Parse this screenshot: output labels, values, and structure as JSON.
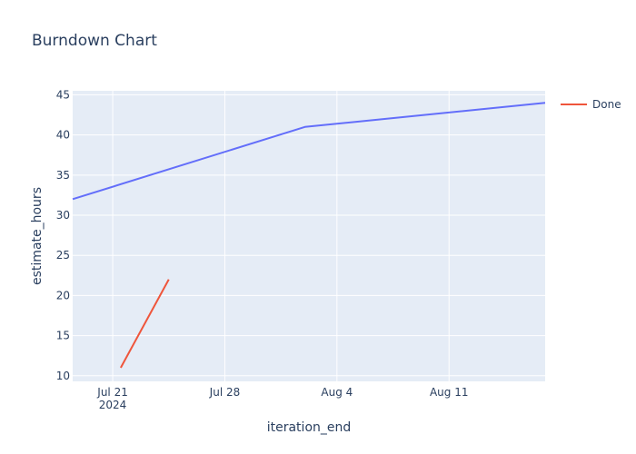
{
  "chart_data": {
    "type": "line",
    "title": "Burndown Chart",
    "xlabel": "iteration_end",
    "ylabel": "estimate_hours",
    "x_axis_type": "date",
    "xlim": [
      "2024-07-18T12:00:00",
      "2024-08-17"
    ],
    "ylim": [
      9.3,
      45.5
    ],
    "grid": true,
    "legend": {
      "placement": "top-right"
    },
    "x_ticks": [
      {
        "value": "2024-07-21",
        "label": "Jul 21",
        "sublabel": "2024"
      },
      {
        "value": "2024-07-28",
        "label": "Jul 28"
      },
      {
        "value": "2024-08-04",
        "label": "Aug 4"
      },
      {
        "value": "2024-08-11",
        "label": "Aug 11"
      }
    ],
    "y_ticks": [
      10,
      15,
      20,
      25,
      30,
      35,
      40,
      45
    ],
    "series": [
      {
        "color": "#636efa",
        "show_in_legend": false,
        "points": [
          {
            "x": "2024-07-18T12:00:00",
            "y": 32
          },
          {
            "x": "2024-08-02",
            "y": 41
          },
          {
            "x": "2024-08-17",
            "y": 44
          }
        ]
      },
      {
        "name": "Done",
        "color": "#ef553b",
        "show_in_legend": true,
        "points": [
          {
            "x": "2024-07-21T12:00:00",
            "y": 11
          },
          {
            "x": "2024-07-24T12:00:00",
            "y": 22
          }
        ]
      }
    ]
  }
}
